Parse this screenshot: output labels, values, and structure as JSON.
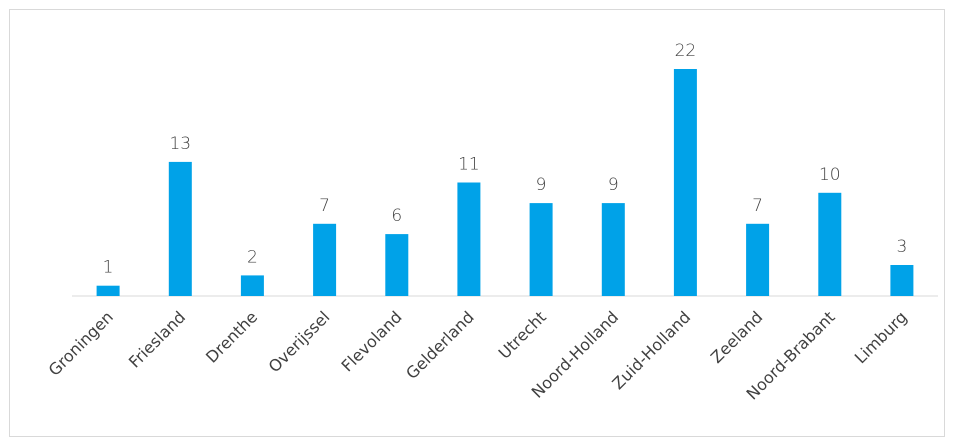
{
  "chart_data": {
    "type": "bar",
    "categories": [
      "Groningen",
      "Friesland",
      "Drenthe",
      "Overijssel",
      "Flevoland",
      "Gelderland",
      "Utrecht",
      "Noord-Holland",
      "Zuid-Holland",
      "Zeeland",
      "Noord-Brabant",
      "Limburg"
    ],
    "values": [
      1,
      13,
      2,
      7,
      6,
      11,
      9,
      9,
      22,
      7,
      10,
      3
    ],
    "title": "",
    "xlabel": "",
    "ylabel": "",
    "ylim": [
      0,
      22
    ],
    "grid": false,
    "legend": "none",
    "bar_color": "#00a2e8",
    "data_labels": true
  }
}
